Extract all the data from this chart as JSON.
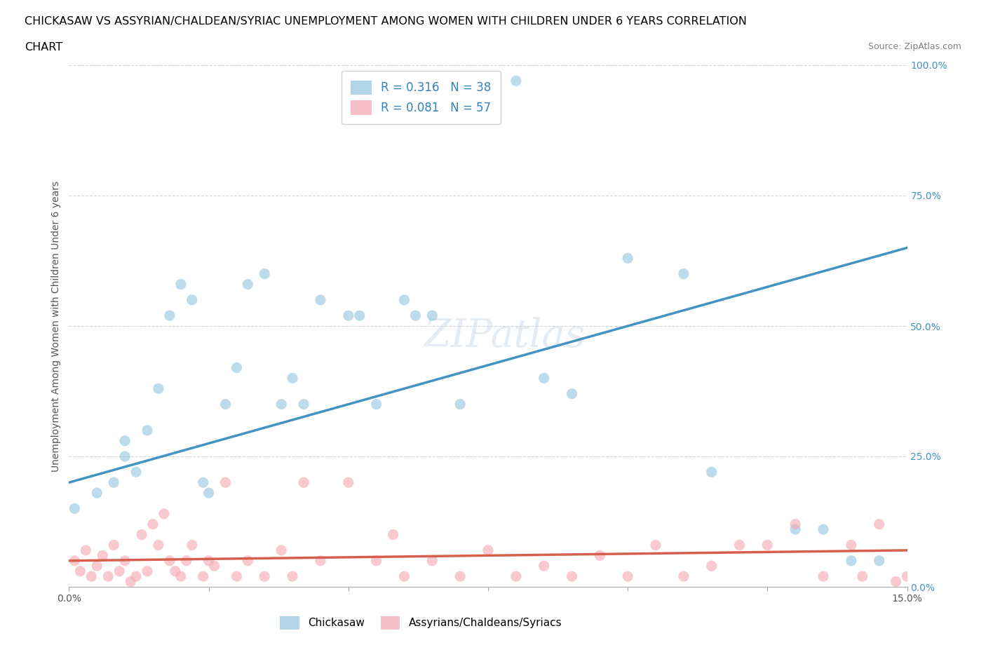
{
  "title_line1": "CHICKASAW VS ASSYRIAN/CHALDEAN/SYRIAC UNEMPLOYMENT AMONG WOMEN WITH CHILDREN UNDER 6 YEARS CORRELATION",
  "title_line2": "CHART",
  "source": "Source: ZipAtlas.com",
  "ylabel": "Unemployment Among Women with Children Under 6 years",
  "xlim": [
    0.0,
    0.15
  ],
  "ylim": [
    0.0,
    1.0
  ],
  "xticks": [
    0.0,
    0.025,
    0.05,
    0.075,
    0.1,
    0.125,
    0.15
  ],
  "yticks": [
    0.0,
    0.25,
    0.5,
    0.75,
    1.0
  ],
  "xtick_labels_show": [
    "0.0%",
    "",
    "",
    "",
    "",
    "",
    "15.0%"
  ],
  "ytick_labels_show": [
    "0.0%",
    "25.0%",
    "50.0%",
    "75.0%",
    "100.0%"
  ],
  "chickasaw_R": 0.316,
  "chickasaw_N": 38,
  "assyrian_R": 0.081,
  "assyrian_N": 57,
  "chickasaw_color": "#92c5de",
  "assyrian_color": "#f4a6b0",
  "chickasaw_line_color": "#4393c3",
  "assyrian_line_color": "#d6604d",
  "background_color": "#ffffff",
  "grid_color": "#cccccc",
  "watermark_text": "ZIPatlas",
  "legend_label_chickasaw": "Chickasaw",
  "legend_label_assyrian": "Assyrians/Chaldeans/Syriacs",
  "chickasaw_x": [
    0.001,
    0.005,
    0.008,
    0.01,
    0.01,
    0.012,
    0.014,
    0.016,
    0.018,
    0.02,
    0.022,
    0.024,
    0.025,
    0.028,
    0.03,
    0.032,
    0.035,
    0.038,
    0.04,
    0.042,
    0.045,
    0.05,
    0.052,
    0.055,
    0.06,
    0.062,
    0.065,
    0.07,
    0.08,
    0.085,
    0.09,
    0.1,
    0.11,
    0.115,
    0.13,
    0.135,
    0.14,
    0.145
  ],
  "chickasaw_y": [
    0.15,
    0.18,
    0.2,
    0.25,
    0.28,
    0.22,
    0.3,
    0.38,
    0.52,
    0.58,
    0.55,
    0.2,
    0.18,
    0.35,
    0.42,
    0.58,
    0.6,
    0.35,
    0.4,
    0.35,
    0.55,
    0.52,
    0.52,
    0.35,
    0.55,
    0.52,
    0.52,
    0.35,
    0.97,
    0.4,
    0.37,
    0.63,
    0.6,
    0.22,
    0.11,
    0.11,
    0.05,
    0.05
  ],
  "assyrian_x": [
    0.001,
    0.002,
    0.003,
    0.004,
    0.005,
    0.006,
    0.007,
    0.008,
    0.009,
    0.01,
    0.011,
    0.012,
    0.013,
    0.014,
    0.015,
    0.016,
    0.017,
    0.018,
    0.019,
    0.02,
    0.021,
    0.022,
    0.024,
    0.025,
    0.026,
    0.028,
    0.03,
    0.032,
    0.035,
    0.038,
    0.04,
    0.042,
    0.045,
    0.05,
    0.055,
    0.058,
    0.06,
    0.065,
    0.07,
    0.075,
    0.08,
    0.085,
    0.09,
    0.095,
    0.1,
    0.105,
    0.11,
    0.115,
    0.12,
    0.125,
    0.13,
    0.135,
    0.14,
    0.142,
    0.145,
    0.148,
    0.15
  ],
  "assyrian_y": [
    0.05,
    0.03,
    0.07,
    0.02,
    0.04,
    0.06,
    0.02,
    0.08,
    0.03,
    0.05,
    0.01,
    0.02,
    0.1,
    0.03,
    0.12,
    0.08,
    0.14,
    0.05,
    0.03,
    0.02,
    0.05,
    0.08,
    0.02,
    0.05,
    0.04,
    0.2,
    0.02,
    0.05,
    0.02,
    0.07,
    0.02,
    0.2,
    0.05,
    0.2,
    0.05,
    0.1,
    0.02,
    0.05,
    0.02,
    0.07,
    0.02,
    0.04,
    0.02,
    0.06,
    0.02,
    0.08,
    0.02,
    0.04,
    0.08,
    0.08,
    0.12,
    0.02,
    0.08,
    0.02,
    0.12,
    0.01,
    0.02
  ]
}
